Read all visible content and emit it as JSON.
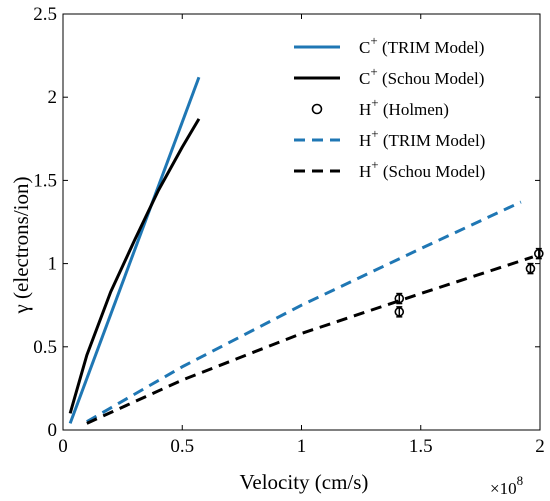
{
  "chart_data": {
    "type": "line",
    "xlabel": "Velocity (cm/s)",
    "ylabel": "γ (electrons/ion)",
    "x_multiplier_label": "×10",
    "x_multiplier_exponent": "8",
    "xlim": [
      0,
      2
    ],
    "ylim": [
      0,
      2.5
    ],
    "x_ticks": [
      0,
      0.5,
      1,
      1.5,
      2
    ],
    "x_tick_labels": [
      "0",
      "0.5",
      "1",
      "1.5",
      "2"
    ],
    "y_ticks": [
      0,
      0.5,
      1,
      1.5,
      2,
      2.5
    ],
    "y_tick_labels": [
      "0",
      "0.5",
      "1",
      "1.5",
      "2",
      "2.5"
    ],
    "grid": false,
    "legend_position": "top-right",
    "series": [
      {
        "name": "C⁺ (TRIM Model)",
        "style": "solid",
        "color": "#1f77b4",
        "x": [
          0.03,
          0.57
        ],
        "y": [
          0.04,
          2.12
        ]
      },
      {
        "name": "C⁺ (Schou Model)",
        "style": "solid",
        "color": "#000000",
        "x": [
          0.03,
          0.1,
          0.2,
          0.3,
          0.4,
          0.5,
          0.57
        ],
        "y": [
          0.1,
          0.45,
          0.83,
          1.14,
          1.44,
          1.7,
          1.87
        ]
      },
      {
        "name": "H⁺ (Holmen)",
        "style": "markers",
        "color": "#000000",
        "x": [
          1.41,
          1.41,
          1.96,
          1.995
        ],
        "y": [
          0.79,
          0.71,
          0.97,
          1.06
        ],
        "yerr": [
          0.03,
          0.03,
          0.03,
          0.03
        ]
      },
      {
        "name": "H⁺ (TRIM Model)",
        "style": "dashed",
        "color": "#1f77b4",
        "x": [
          0.1,
          0.5,
          1.0,
          1.5,
          1.92
        ],
        "y": [
          0.05,
          0.38,
          0.75,
          1.09,
          1.37
        ]
      },
      {
        "name": "H⁺ (Schou Model)",
        "style": "dashed",
        "color": "#000000",
        "x": [
          0.1,
          0.5,
          1.0,
          1.5,
          1.97
        ],
        "y": [
          0.04,
          0.3,
          0.58,
          0.82,
          1.04
        ]
      }
    ],
    "legend": [
      {
        "ion": "C",
        "charge": "+",
        "model": " (TRIM Model)",
        "kind": "solid",
        "color": "#1f77b4"
      },
      {
        "ion": "C",
        "charge": "+",
        "model": " (Schou Model)",
        "kind": "solid",
        "color": "#000000"
      },
      {
        "ion": "H",
        "charge": "+",
        "model": " (Holmen)",
        "kind": "marker",
        "color": "#000000"
      },
      {
        "ion": "H",
        "charge": "+",
        "model": " (TRIM Model)",
        "kind": "dashed",
        "color": "#1f77b4"
      },
      {
        "ion": "H",
        "charge": "+",
        "model": " (Schou Model)",
        "kind": "dashed",
        "color": "#000000"
      }
    ]
  }
}
